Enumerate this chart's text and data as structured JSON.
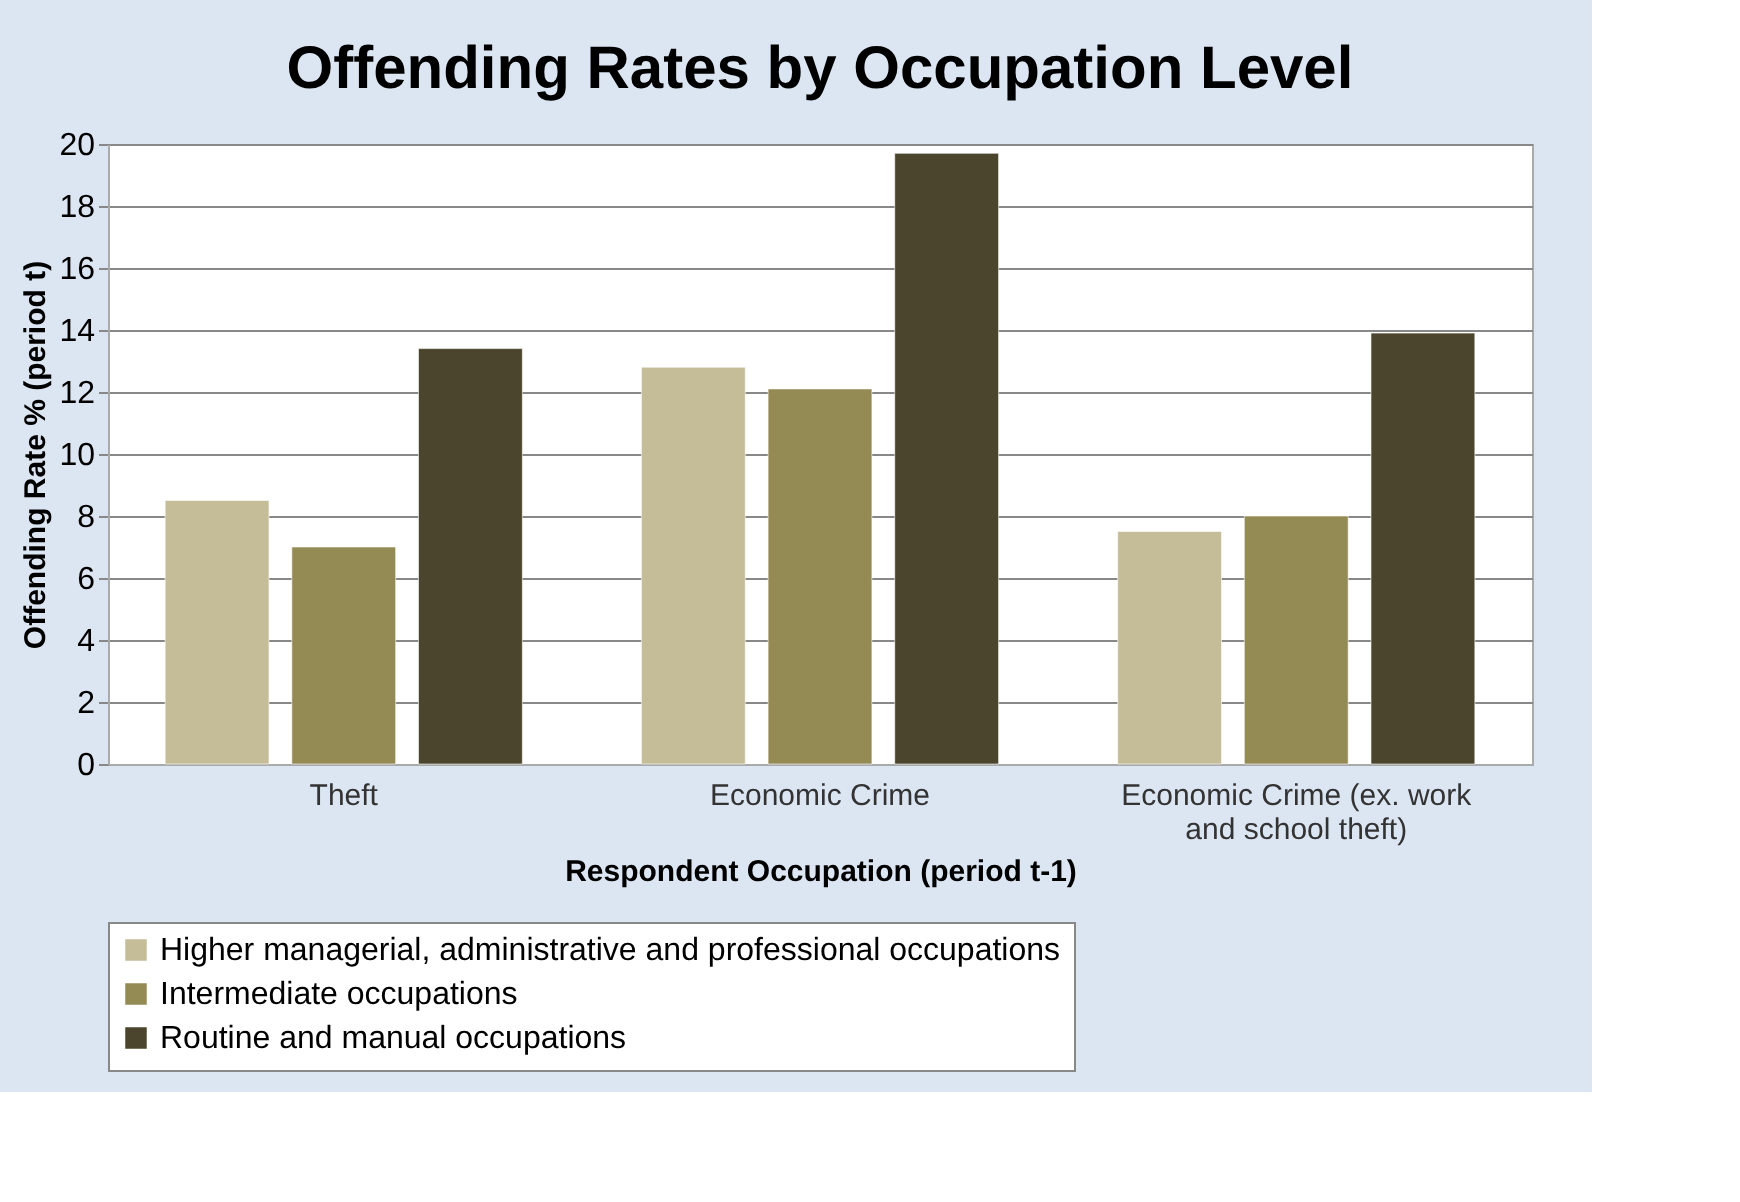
{
  "chart_data": {
    "type": "bar",
    "title": "Offending Rates by Occupation Level",
    "xlabel": "Respondent Occupation (period t-1)",
    "ylabel": "Offending Rate % (period t)",
    "categories": [
      "Theft",
      "Economic Crime",
      "Economic Crime (ex. work and school theft)"
    ],
    "series": [
      {
        "name": "Higher managerial, administrative and professional occupations",
        "color": "#c4bd97",
        "values": [
          8.5,
          12.8,
          7.5
        ]
      },
      {
        "name": "Intermediate occupations",
        "color": "#948a54",
        "values": [
          7.0,
          12.1,
          8.0
        ]
      },
      {
        "name": "Routine and manual occupations",
        "color": "#4a452c",
        "values": [
          13.4,
          19.7,
          13.9
        ]
      }
    ],
    "ylim": [
      0,
      20
    ],
    "yticks": [
      0,
      2,
      4,
      6,
      8,
      10,
      12,
      14,
      16,
      18,
      20
    ],
    "grid": "y",
    "legend": "bottom"
  }
}
